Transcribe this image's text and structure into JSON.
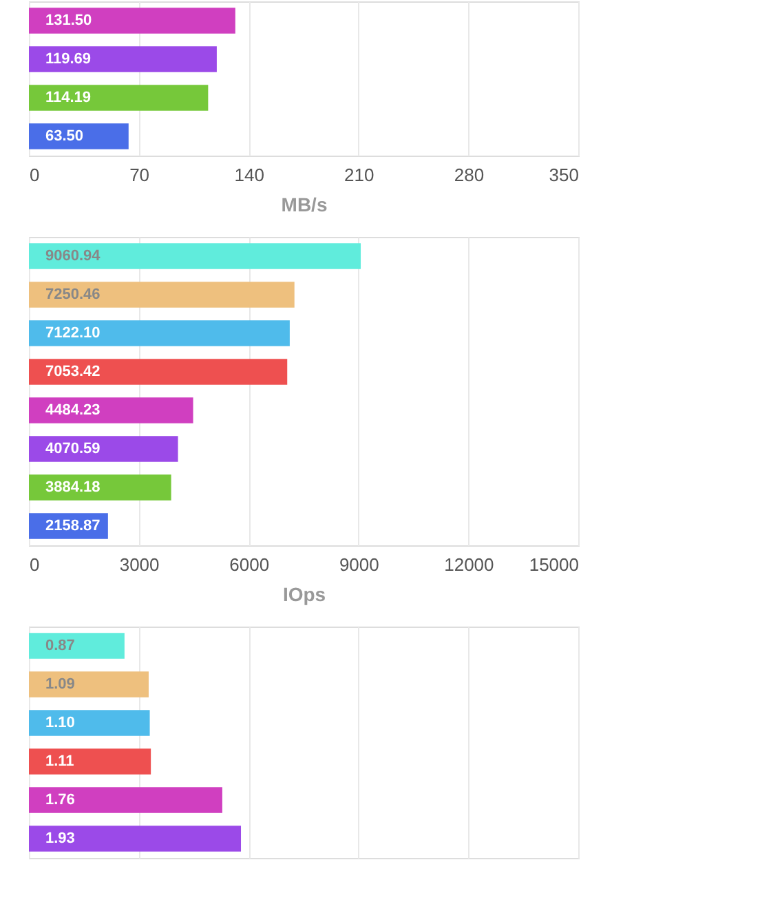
{
  "chart_data": [
    {
      "type": "bar",
      "orientation": "horizontal",
      "categories": [
        null,
        null,
        null,
        null
      ],
      "values": [
        131.5,
        119.69,
        114.19,
        63.5
      ],
      "value_labels": [
        "131.50",
        "119.69",
        "114.19",
        "63.50"
      ],
      "colors": [
        "#d03fc0",
        "#9b4ae8",
        "#76c83a",
        "#4a6ee8"
      ],
      "xlim": [
        0,
        350
      ],
      "xticks": [
        0,
        70,
        140,
        210,
        280,
        350
      ],
      "xlabel": "MB/s",
      "grid": "x"
    },
    {
      "type": "bar",
      "orientation": "horizontal",
      "categories": [
        null,
        null,
        null,
        null,
        null,
        null,
        null,
        null
      ],
      "values": [
        9060.94,
        7250.46,
        7122.1,
        7053.42,
        4484.23,
        4070.59,
        3884.18,
        2158.87
      ],
      "value_labels": [
        "9060.94",
        "7250.46",
        "7122.10",
        "7053.42",
        "4484.23",
        "4070.59",
        "3884.18",
        "2158.87"
      ],
      "colors": [
        "#60ecdc",
        "#eec07e",
        "#4fbbeb",
        "#ee5050",
        "#d03fc0",
        "#9b4ae8",
        "#76c83a",
        "#4a6ee8"
      ],
      "xlim": [
        0,
        15000
      ],
      "xticks": [
        0,
        3000,
        6000,
        9000,
        12000,
        15000
      ],
      "xlabel": "IOps",
      "grid": "x"
    },
    {
      "type": "bar",
      "orientation": "horizontal",
      "categories": [
        null,
        null,
        null,
        null,
        null,
        null
      ],
      "values": [
        0.87,
        1.09,
        1.1,
        1.11,
        1.76,
        1.93
      ],
      "value_labels": [
        "0.87",
        "1.09",
        "1.10",
        "1.11",
        "1.76",
        "1.93"
      ],
      "colors": [
        "#60ecdc",
        "#eec07e",
        "#4fbbeb",
        "#ee5050",
        "#d03fc0",
        "#9b4ae8"
      ],
      "xlim": [
        0,
        5
      ],
      "xticks": [
        {
          "value": 0,
          "label": null
        },
        {
          "value": 1,
          "label": null
        },
        {
          "value": 2,
          "label": null
        },
        {
          "value": 3,
          "label": null
        },
        {
          "value": 4,
          "label": null
        },
        {
          "value": 5,
          "label": null
        }
      ],
      "grid": "x"
    }
  ]
}
